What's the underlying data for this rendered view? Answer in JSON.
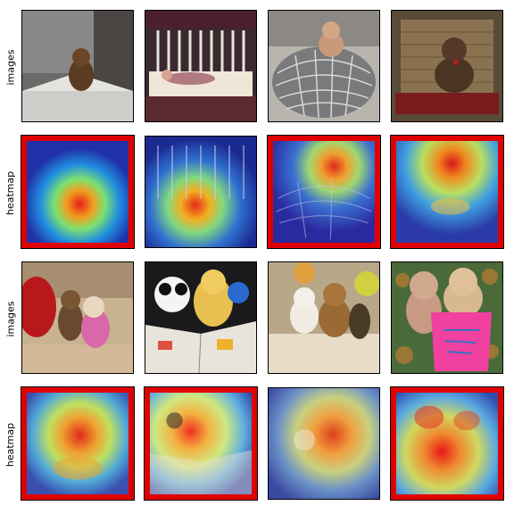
{
  "row_labels": [
    "images",
    "heatmap",
    "images",
    "heatmap"
  ],
  "panels": [
    {
      "row": 0,
      "col": 0,
      "kind": "image",
      "scene": "teddy-on-box"
    },
    {
      "row": 0,
      "col": 1,
      "kind": "image",
      "scene": "child-in-crib"
    },
    {
      "row": 0,
      "col": 2,
      "kind": "image",
      "scene": "teddy-on-wire-chair"
    },
    {
      "row": 0,
      "col": 3,
      "kind": "image",
      "scene": "teddy-on-wicker-chair"
    },
    {
      "row": 1,
      "col": 0,
      "kind": "heatmap",
      "highlighted": true,
      "scene": "teddy-on-box"
    },
    {
      "row": 1,
      "col": 1,
      "kind": "heatmap",
      "highlighted": false,
      "scene": "child-in-crib"
    },
    {
      "row": 1,
      "col": 2,
      "kind": "heatmap",
      "highlighted": true,
      "scene": "teddy-on-wire-chair"
    },
    {
      "row": 1,
      "col": 3,
      "kind": "heatmap",
      "highlighted": true,
      "scene": "teddy-on-wicker-chair"
    },
    {
      "row": 2,
      "col": 0,
      "kind": "image",
      "scene": "bears-on-couch"
    },
    {
      "row": 2,
      "col": 1,
      "kind": "image",
      "scene": "plush-on-book"
    },
    {
      "row": 2,
      "col": 2,
      "kind": "image",
      "scene": "bears-in-bed"
    },
    {
      "row": 2,
      "col": 3,
      "kind": "image",
      "scene": "bears-pink-shirt"
    },
    {
      "row": 3,
      "col": 0,
      "kind": "heatmap",
      "highlighted": true,
      "scene": "bears-on-couch"
    },
    {
      "row": 3,
      "col": 1,
      "kind": "heatmap",
      "highlighted": true,
      "scene": "plush-on-book"
    },
    {
      "row": 3,
      "col": 2,
      "kind": "heatmap",
      "highlighted": false,
      "scene": "bears-in-bed"
    },
    {
      "row": 3,
      "col": 3,
      "kind": "heatmap",
      "highlighted": true,
      "scene": "bears-pink-shirt"
    }
  ],
  "colors": {
    "highlight_border": "#e00000",
    "frame": "#000000"
  }
}
